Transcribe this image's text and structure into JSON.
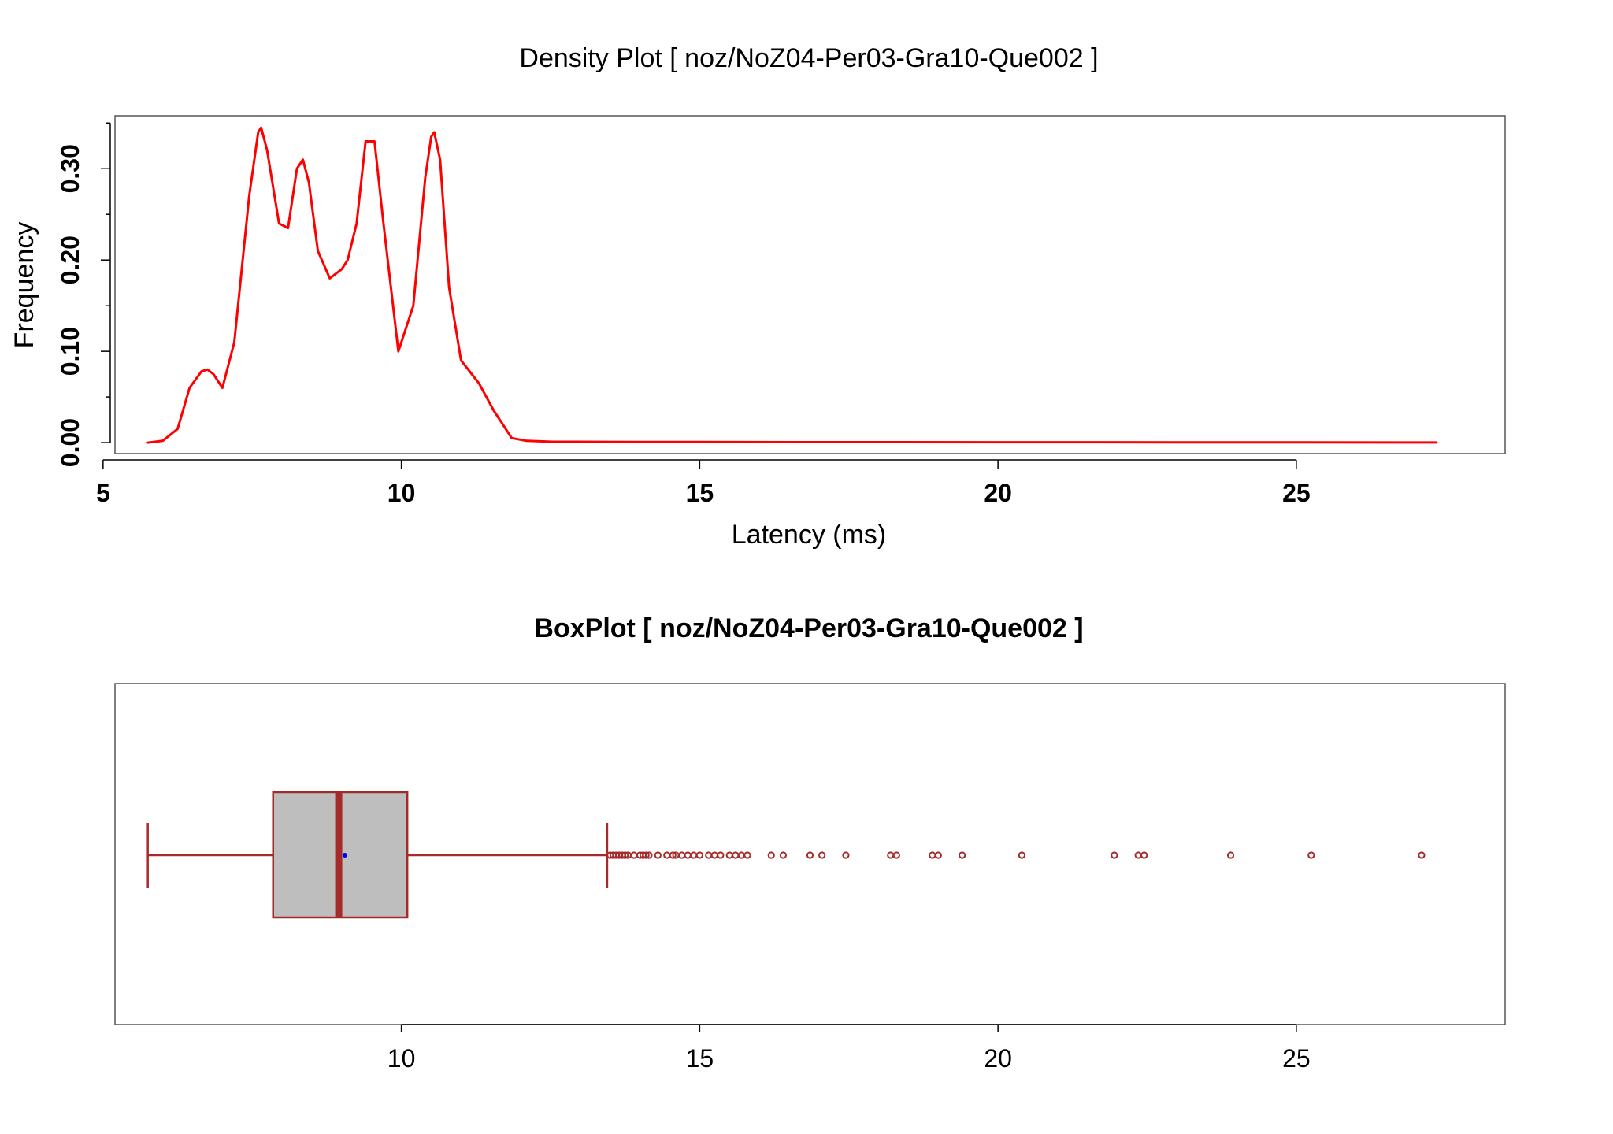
{
  "chart_data": [
    {
      "type": "line",
      "title": "Density Plot [ noz/NoZ04-Per03-Gra10-Que002 ]",
      "xlabel": "Latency (ms)",
      "ylabel": "Frequency",
      "xlim": [
        5.2,
        28.5
      ],
      "ylim": [
        -0.012,
        0.358
      ],
      "x_ticks": [
        5,
        10,
        15,
        20,
        25
      ],
      "x_tick_labels": [
        "5",
        "10",
        "15",
        "20",
        "25"
      ],
      "y_ticks": [
        0.0,
        0.1,
        0.2,
        0.3
      ],
      "y_tick_labels": [
        "0.00",
        "0.10",
        "0.20",
        "0.30"
      ],
      "y_minor_ticks": [
        0.05,
        0.15,
        0.25,
        0.35
      ],
      "grid": false,
      "line_color": "#ff0000",
      "series": [
        {
          "x": [
            5.75,
            6.0,
            6.25,
            6.45,
            6.65,
            6.75,
            6.85,
            7.0,
            7.2,
            7.45,
            7.6,
            7.65,
            7.75,
            7.95,
            8.1,
            8.25,
            8.35,
            8.45,
            8.6,
            8.8,
            9.0,
            9.1,
            9.25,
            9.4,
            9.55,
            9.7,
            9.95,
            10.2,
            10.4,
            10.5,
            10.55,
            10.65,
            10.8,
            11.0,
            11.3,
            11.55,
            11.85,
            12.1,
            12.5,
            14.0,
            17.0,
            20.0,
            23.0,
            27.35
          ],
          "values": [
            0.0,
            0.002,
            0.015,
            0.06,
            0.078,
            0.08,
            0.075,
            0.06,
            0.11,
            0.27,
            0.34,
            0.345,
            0.32,
            0.24,
            0.235,
            0.3,
            0.31,
            0.285,
            0.21,
            0.18,
            0.19,
            0.2,
            0.24,
            0.33,
            0.33,
            0.24,
            0.1,
            0.15,
            0.29,
            0.335,
            0.34,
            0.31,
            0.17,
            0.09,
            0.065,
            0.035,
            0.005,
            0.002,
            0.001,
            0.0008,
            0.0005,
            0.0004,
            0.0003,
            0.0002
          ]
        }
      ]
    },
    {
      "type": "box",
      "title": "BoxPlot [ noz/NoZ04-Per03-Gra10-Que002 ]",
      "xlim": [
        5.2,
        28.5
      ],
      "x_ticks": [
        10,
        15,
        20,
        25
      ],
      "x_tick_labels": [
        "10",
        "15",
        "20",
        "25"
      ],
      "box_fill": "#bebebe",
      "box_color": "#a52a2a",
      "mean_color": "#0000ff",
      "whisker_low": 5.75,
      "q1": 7.85,
      "median": 8.95,
      "q3": 10.1,
      "whisker_high": 13.45,
      "mean": 9.0,
      "outliers": [
        13.5,
        13.55,
        13.6,
        13.65,
        13.7,
        13.75,
        13.8,
        13.9,
        14.0,
        14.05,
        14.1,
        14.15,
        14.3,
        14.45,
        14.55,
        14.6,
        14.7,
        14.8,
        14.9,
        15.0,
        15.15,
        15.25,
        15.35,
        15.5,
        15.6,
        15.7,
        15.8,
        16.2,
        16.4,
        16.85,
        17.05,
        17.45,
        18.2,
        18.3,
        18.9,
        19.0,
        19.4,
        20.4,
        21.95,
        22.35,
        22.45,
        23.9,
        25.25,
        27.1
      ]
    }
  ]
}
